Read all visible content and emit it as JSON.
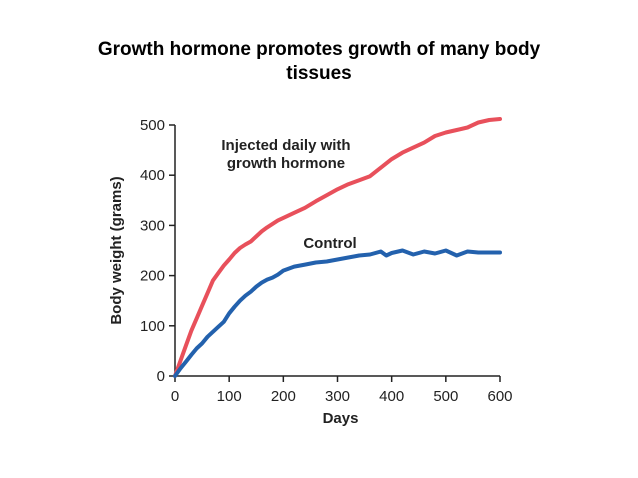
{
  "slide": {
    "title_line1": "Growth hormone promotes growth of many body",
    "title_line2": "tissues"
  },
  "chart_data": {
    "type": "line",
    "title": "",
    "xlabel": "Days",
    "ylabel": "Body weight (grams)",
    "xlim": [
      0,
      600
    ],
    "ylim": [
      0,
      500
    ],
    "xticks": [
      0,
      100,
      200,
      300,
      400,
      500,
      600
    ],
    "yticks": [
      0,
      100,
      200,
      300,
      400,
      500
    ],
    "grid": false,
    "series": [
      {
        "name": "Injected daily with growth hormone",
        "label_lines": [
          "Injected daily with",
          "growth hormone"
        ],
        "color": "#e8505b",
        "x": [
          0,
          10,
          20,
          30,
          40,
          50,
          60,
          70,
          80,
          90,
          100,
          110,
          120,
          130,
          140,
          150,
          160,
          170,
          180,
          190,
          200,
          220,
          240,
          260,
          280,
          300,
          320,
          340,
          360,
          380,
          400,
          420,
          440,
          460,
          480,
          500,
          520,
          540,
          560,
          580,
          600
        ],
        "y": [
          0,
          30,
          60,
          90,
          115,
          140,
          165,
          190,
          205,
          220,
          232,
          245,
          255,
          262,
          268,
          278,
          288,
          296,
          303,
          310,
          315,
          325,
          335,
          348,
          360,
          372,
          382,
          390,
          398,
          415,
          432,
          445,
          455,
          465,
          478,
          485,
          490,
          495,
          505,
          510,
          512
        ]
      },
      {
        "name": "Control",
        "label_lines": [
          "Control"
        ],
        "color": "#2361ad",
        "x": [
          0,
          10,
          20,
          30,
          40,
          50,
          60,
          70,
          80,
          90,
          100,
          110,
          120,
          130,
          140,
          150,
          160,
          170,
          180,
          190,
          200,
          220,
          240,
          260,
          280,
          300,
          320,
          340,
          360,
          380,
          390,
          400,
          420,
          440,
          460,
          480,
          500,
          520,
          540,
          560,
          580,
          600
        ],
        "y": [
          0,
          15,
          28,
          42,
          55,
          65,
          78,
          88,
          98,
          108,
          125,
          138,
          150,
          160,
          168,
          178,
          186,
          192,
          196,
          202,
          210,
          218,
          222,
          226,
          228,
          232,
          236,
          240,
          242,
          248,
          240,
          245,
          250,
          242,
          248,
          244,
          250,
          240,
          248,
          246,
          246,
          246
        ]
      }
    ]
  }
}
